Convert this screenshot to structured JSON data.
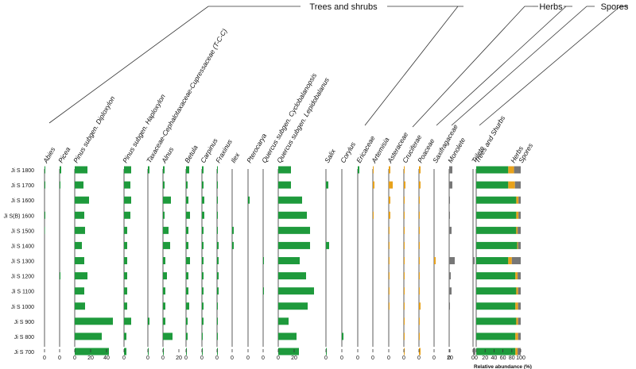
{
  "chart_data": {
    "type": "stratigraphic-bar",
    "xlabel": "Relative abundance (%)",
    "groups": [
      {
        "name": "Trees and shrubs",
        "color": "#1e9a3c"
      },
      {
        "name": "Herbs",
        "color": "#e8a21b"
      },
      {
        "name": "Spores",
        "color": "#777777"
      }
    ],
    "samples": [
      "Ji S 1800",
      "Ji S 1700",
      "Ji S 1600",
      "Ji S(B) 1600",
      "Ji S 1500",
      "Ji S 1400",
      "Ji S 1300",
      "Ji S 1200",
      "Ji S 1100",
      "Ji S 1000",
      "Ji S 900",
      "Ji S 800",
      "Ji S 700"
    ],
    "taxa": [
      {
        "name": "Abies",
        "group": "Trees and shrubs",
        "values": [
          1,
          1,
          0,
          1,
          0.5,
          0,
          0,
          0,
          0,
          0,
          0,
          0,
          0
        ]
      },
      {
        "name": "Picea",
        "group": "Trees and shrubs",
        "values": [
          2,
          1,
          0,
          0,
          0,
          0,
          0,
          1,
          0,
          0,
          0,
          0,
          0
        ]
      },
      {
        "name": "Pinus subgen. Diploxylon",
        "group": "Trees and shrubs",
        "values": [
          16,
          11,
          18,
          12,
          13,
          9,
          12,
          16,
          12,
          13,
          48,
          34,
          43
        ]
      },
      {
        "name": "Pinus subgen. Haploxylon",
        "group": "Trees and shrubs",
        "values": [
          9,
          8,
          9,
          8,
          4,
          4,
          4,
          4,
          4,
          4,
          9,
          3,
          3
        ]
      },
      {
        "name": "Taxaceae-Cephalotaxaceae-Cupressaceae (T-C-C)",
        "group": "Trees and shrubs",
        "values": [
          2,
          0,
          0,
          0,
          0,
          0,
          0,
          0,
          0,
          0,
          2,
          0,
          1
        ]
      },
      {
        "name": "Alnus",
        "group": "Trees and shrubs",
        "values": [
          2,
          2,
          10,
          2,
          7,
          9,
          3,
          5,
          3,
          3,
          3,
          12,
          1
        ]
      },
      {
        "name": "Betula",
        "group": "Trees and shrubs",
        "values": [
          4,
          2,
          3,
          5,
          3,
          3,
          5,
          3,
          3,
          4,
          2,
          2,
          1
        ]
      },
      {
        "name": "Carpinus",
        "group": "Trees and shrubs",
        "values": [
          2,
          2,
          3,
          3,
          2,
          2,
          2,
          2,
          2,
          2,
          2,
          1,
          1
        ]
      },
      {
        "name": "Fraxinus",
        "group": "Trees and shrubs",
        "values": [
          1,
          1,
          1,
          1,
          1,
          2,
          2,
          2,
          2,
          1,
          1,
          1,
          1
        ]
      },
      {
        "name": "Ilex",
        "group": "Trees and shrubs",
        "values": [
          0,
          0,
          0,
          0,
          2,
          2,
          0,
          0,
          0,
          0,
          0,
          0,
          0
        ]
      },
      {
        "name": "Pterocarya",
        "group": "Trees and shrubs",
        "values": [
          0,
          0,
          2,
          0,
          0,
          0,
          0,
          0,
          0,
          0,
          0,
          0,
          0
        ]
      },
      {
        "name": "Quercus subgen. Cyclobalanopsis",
        "group": "Trees and shrubs",
        "values": [
          0,
          0,
          0,
          0,
          0,
          0,
          1,
          0,
          1,
          0,
          0,
          0,
          0
        ]
      },
      {
        "name": "Quercus subgen. Lepidobalanus",
        "group": "Trees and shrubs",
        "values": [
          16,
          16,
          30,
          36,
          40,
          40,
          27,
          35,
          45,
          37,
          13,
          23,
          26
        ]
      },
      {
        "name": "Salix",
        "group": "Trees and shrubs",
        "values": [
          0,
          3,
          0,
          0,
          0,
          4,
          0,
          0,
          0,
          0,
          0,
          0,
          1
        ]
      },
      {
        "name": "Corylus",
        "group": "Trees and shrubs",
        "values": [
          0,
          0,
          0,
          0,
          0,
          0,
          0,
          0,
          0,
          0,
          0,
          2,
          0
        ]
      },
      {
        "name": "Ericaceae",
        "group": "Trees and shrubs",
        "values": [
          2,
          0,
          0,
          0,
          0,
          0,
          0,
          0,
          0,
          0,
          0,
          0,
          0
        ]
      },
      {
        "name": "Artemisia",
        "group": "Herbs",
        "values": [
          1,
          2,
          0,
          1,
          0,
          0,
          0,
          0,
          0,
          0,
          0,
          0,
          0
        ]
      },
      {
        "name": "Asteraceae",
        "group": "Herbs",
        "values": [
          2,
          5,
          2,
          2,
          1,
          1,
          1,
          1,
          1,
          1,
          0,
          0,
          0
        ]
      },
      {
        "name": "Cruciferae",
        "group": "Herbs",
        "values": [
          1,
          2,
          1,
          1,
          1,
          1,
          1,
          1,
          1,
          1,
          1,
          1,
          1
        ]
      },
      {
        "name": "Poaceae",
        "group": "Herbs",
        "values": [
          2,
          2,
          1,
          1,
          1,
          1,
          1,
          1,
          1,
          2,
          1,
          1,
          2
        ]
      },
      {
        "name": "Saxifragaceae",
        "group": "Herbs",
        "values": [
          0,
          0,
          0,
          0,
          0,
          0,
          2,
          0,
          0,
          0,
          0,
          0,
          0
        ]
      },
      {
        "name": "Monolete",
        "group": "Spores",
        "values": [
          4,
          4,
          1,
          1,
          3,
          0,
          7,
          2,
          3,
          1,
          0,
          0,
          0
        ]
      },
      {
        "name": "Trilete",
        "group": "Spores",
        "values": [
          0,
          0,
          0,
          0,
          0,
          0,
          2,
          0,
          0,
          0,
          0,
          0,
          3
        ]
      }
    ],
    "summary": {
      "name": "Trees and Shurbs",
      "sublabels": [
        "Herbs",
        "Spores"
      ],
      "ticks": [
        0,
        20,
        40,
        60,
        80,
        100
      ],
      "trees": [
        72,
        72,
        90,
        90,
        90,
        92,
        72,
        88,
        90,
        88,
        90,
        88,
        88
      ],
      "herbs": [
        13,
        15,
        5,
        5,
        3,
        2,
        8,
        5,
        4,
        6,
        4,
        6,
        5
      ],
      "spores": [
        15,
        13,
        5,
        5,
        7,
        6,
        20,
        7,
        6,
        6,
        6,
        6,
        7
      ]
    }
  }
}
